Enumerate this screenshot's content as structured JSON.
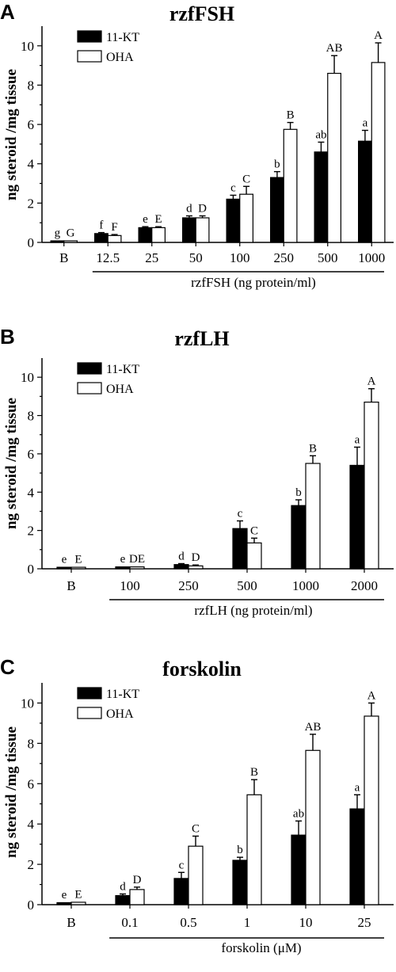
{
  "chart_data": [
    {
      "type": "bar",
      "panel": "A",
      "title": "rzfFSH",
      "ylabel": "ng steroid /mg tissue",
      "xlabel": "rzfFSH (ng protein/ml)",
      "categories": [
        "B",
        "12.5",
        "25",
        "50",
        "100",
        "250",
        "500",
        "1000"
      ],
      "ylim": [
        0,
        11
      ],
      "yticks": [
        "0",
        "2",
        "4",
        "6",
        "8",
        "10"
      ],
      "legend": "top-left",
      "series": [
        {
          "name": "11-KT",
          "color": "#000000",
          "values": [
            0.08,
            0.45,
            0.75,
            1.25,
            2.2,
            3.3,
            4.6,
            5.15
          ],
          "errors": [
            0.02,
            0.05,
            0.05,
            0.1,
            0.2,
            0.3,
            0.5,
            0.55
          ],
          "letters": [
            "g",
            "f",
            "e",
            "d",
            "c",
            "b",
            "ab",
            "a"
          ]
        },
        {
          "name": "OHA",
          "color": "#ffffff",
          "values": [
            0.08,
            0.35,
            0.75,
            1.25,
            2.45,
            5.75,
            8.6,
            9.15
          ],
          "errors": [
            0.02,
            0.05,
            0.05,
            0.1,
            0.4,
            0.35,
            0.9,
            1.0
          ],
          "letters": [
            "G",
            "F",
            "E",
            "D",
            "C",
            "B",
            "AB",
            "A"
          ]
        }
      ]
    },
    {
      "type": "bar",
      "panel": "B",
      "title": "rzfLH",
      "ylabel": "ng steroid /mg tissue",
      "xlabel": "rzfLH (ng protein/ml)",
      "categories": [
        "B",
        "100",
        "250",
        "500",
        "1000",
        "2000"
      ],
      "ylim": [
        0,
        11
      ],
      "yticks": [
        "0",
        "2",
        "4",
        "6",
        "8",
        "10"
      ],
      "legend": "top-left",
      "series": [
        {
          "name": "11-KT",
          "color": "#000000",
          "values": [
            0.08,
            0.1,
            0.22,
            2.1,
            3.3,
            5.4
          ],
          "errors": [
            0.02,
            0.02,
            0.05,
            0.4,
            0.3,
            0.95
          ],
          "letters": [
            "e",
            "e",
            "d",
            "c",
            "b",
            "a"
          ]
        },
        {
          "name": "OHA",
          "color": "#ffffff",
          "values": [
            0.08,
            0.1,
            0.15,
            1.35,
            5.5,
            8.7
          ],
          "errors": [
            0.02,
            0.02,
            0.05,
            0.25,
            0.4,
            0.7
          ],
          "letters": [
            "E",
            "DE",
            "D",
            "C",
            "B",
            "A"
          ]
        }
      ]
    },
    {
      "type": "bar",
      "panel": "C",
      "title": "forskolin",
      "ylabel": "ng steroid /mg tissue",
      "xlabel": "forskolin (μM)",
      "categories": [
        "B",
        "0.1",
        "0.5",
        "1",
        "10",
        "25"
      ],
      "ylim": [
        0,
        11
      ],
      "yticks": [
        "0",
        "2",
        "4",
        "6",
        "8",
        "10"
      ],
      "legend": "top-left",
      "series": [
        {
          "name": "11-KT",
          "color": "#000000",
          "values": [
            0.1,
            0.45,
            1.3,
            2.2,
            3.45,
            4.75
          ],
          "errors": [
            0.02,
            0.08,
            0.3,
            0.15,
            0.7,
            0.7
          ],
          "letters": [
            "e",
            "d",
            "c",
            "b",
            "ab",
            "a"
          ]
        },
        {
          "name": "OHA",
          "color": "#ffffff",
          "values": [
            0.12,
            0.75,
            2.9,
            5.45,
            7.65,
            9.35
          ],
          "errors": [
            0.02,
            0.12,
            0.5,
            0.75,
            0.8,
            0.65
          ],
          "letters": [
            "E",
            "D",
            "C",
            "B",
            "AB",
            "A"
          ]
        }
      ]
    }
  ]
}
